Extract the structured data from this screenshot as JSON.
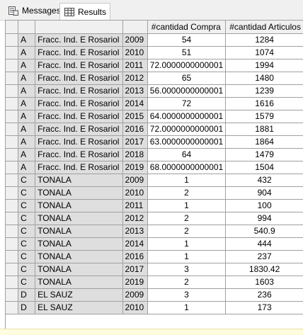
{
  "tabs": [
    {
      "label": "Messages",
      "icon": "messages-icon"
    },
    {
      "label": "Results",
      "icon": "grid-icon"
    }
  ],
  "columns": [
    "",
    "",
    "",
    "#cantidad Compra",
    "#cantidad Articulos"
  ],
  "rows": [
    [
      "A",
      "Fracc. Ind. E Rosariol",
      "2009",
      "54",
      "1284"
    ],
    [
      "A",
      "Fracc. Ind. E Rosariol",
      "2010",
      "51",
      "1074"
    ],
    [
      "A",
      "Fracc. Ind. E Rosariol",
      "2011",
      "72.0000000000001",
      "1994"
    ],
    [
      "A",
      "Fracc. Ind. E Rosariol",
      "2012",
      "65",
      "1480"
    ],
    [
      "A",
      "Fracc. Ind. E Rosariol",
      "2013",
      "56.0000000000001",
      "1239"
    ],
    [
      "A",
      "Fracc. Ind. E Rosariol",
      "2014",
      "72",
      "1616"
    ],
    [
      "A",
      "Fracc. Ind. E Rosariol",
      "2015",
      "64.0000000000001",
      "1579"
    ],
    [
      "A",
      "Fracc. Ind. E Rosariol",
      "2016",
      "72.0000000000001",
      "1881"
    ],
    [
      "A",
      "Fracc. Ind. E Rosariol",
      "2017",
      "63.0000000000001",
      "1864"
    ],
    [
      "A",
      "Fracc. Ind. E Rosariol",
      "2018",
      "64",
      "1479"
    ],
    [
      "A",
      "Fracc. Ind. E Rosariol",
      "2019",
      "68.0000000000001",
      "1504"
    ],
    [
      "C",
      "TONALA",
      "2009",
      "1",
      "432"
    ],
    [
      "C",
      "TONALA",
      "2010",
      "2",
      "904"
    ],
    [
      "C",
      "TONALA",
      "2011",
      "1",
      "100"
    ],
    [
      "C",
      "TONALA",
      "2012",
      "2",
      "994"
    ],
    [
      "C",
      "TONALA",
      "2013",
      "2",
      "540.9"
    ],
    [
      "C",
      "TONALA",
      "2014",
      "1",
      "444"
    ],
    [
      "C",
      "TONALA",
      "2016",
      "1",
      "237"
    ],
    [
      "C",
      "TONALA",
      "2017",
      "3",
      "1830.42"
    ],
    [
      "C",
      "TONALA",
      "2019",
      "2",
      "1603"
    ],
    [
      "D",
      "EL SAUZ",
      "2009",
      "3",
      "236"
    ],
    [
      "D",
      "EL SAUZ",
      "2010",
      "1",
      "173"
    ]
  ]
}
